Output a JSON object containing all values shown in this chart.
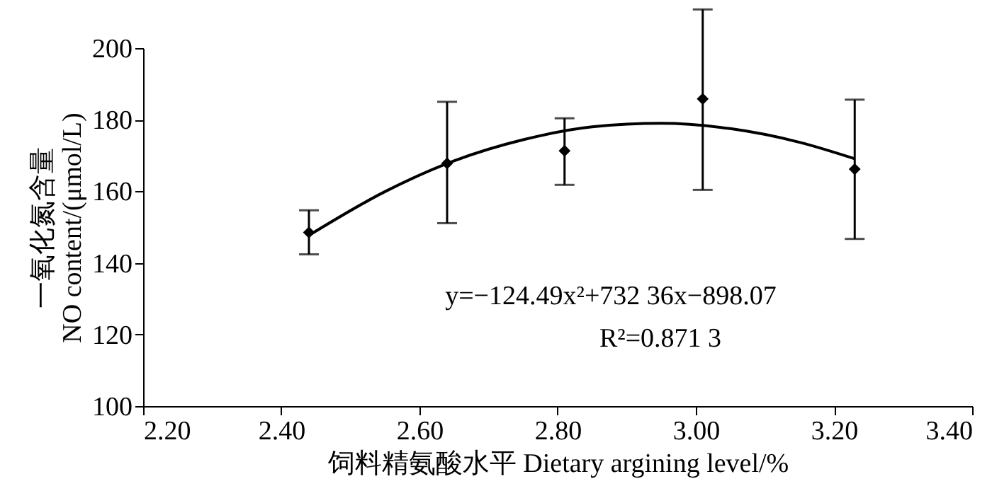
{
  "chart_data": {
    "type": "scatter",
    "xlabel": "饲料精氨酸水平  Dietary argining level/%",
    "ylabel": "一氧化氮含量\nNO content/(μmol/L)",
    "xlim": [
      2.2,
      3.4
    ],
    "xticks": [
      {
        "value": 2.2,
        "label": "2.20"
      },
      {
        "value": 2.4,
        "label": "2.40"
      },
      {
        "value": 2.6,
        "label": "2.60"
      },
      {
        "value": 2.8,
        "label": "2.80"
      },
      {
        "value": 3.0,
        "label": "3.00"
      },
      {
        "value": 3.2,
        "label": "3.20"
      },
      {
        "value": 3.4,
        "label": "3.40"
      }
    ],
    "ylim": [
      100,
      200
    ],
    "yticks": [
      100,
      120,
      140,
      160,
      180,
      200
    ],
    "grid": false,
    "series": [
      {
        "color": "#000000",
        "marker": "diamond",
        "x": [
          2.44,
          2.64,
          2.81,
          3.01,
          3.23
        ],
        "values": [
          148.5,
          167.8,
          171.3,
          185.8,
          166.2
        ],
        "errors": [
          [
            142.4,
            154.7
          ],
          [
            151.1,
            185.0
          ],
          [
            161.8,
            180.4
          ],
          [
            160.4,
            210.8
          ],
          [
            146.7,
            185.6
          ]
        ]
      },
      {
        "type": "line",
        "color": "#000000",
        "marker": "none",
        "line_style": "solid",
        "x": [
          2.44,
          2.55,
          2.65,
          2.75,
          2.85,
          2.95,
          3.05,
          3.15,
          3.23
        ],
        "values": [
          147.7,
          159.9,
          168.5,
          174.4,
          178.0,
          179.0,
          177.5,
          173.7,
          169.1
        ]
      }
    ],
    "annotations": [
      "y=−124.49x²+732 36x−898.07",
      "R²=0.871 3"
    ]
  }
}
